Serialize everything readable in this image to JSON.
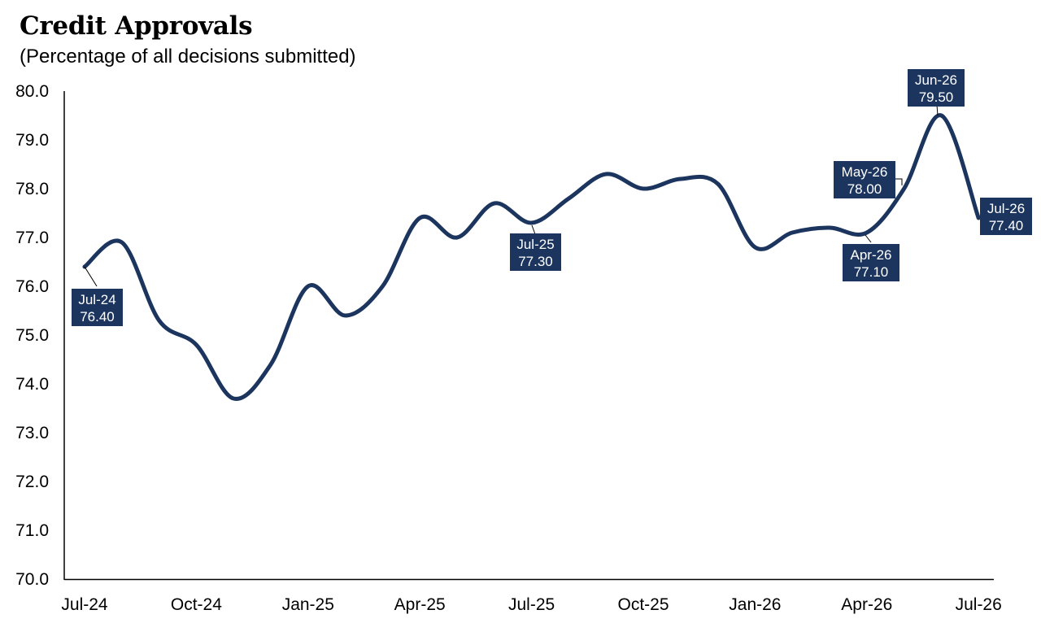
{
  "chart_data": {
    "type": "line",
    "title": "Credit Approvals",
    "subtitle": "(Percentage of all decisions submitted)",
    "xlabel": "",
    "ylabel": "",
    "ylim": [
      70.0,
      80.0
    ],
    "yticks": [
      "70.0",
      "71.0",
      "72.0",
      "73.0",
      "74.0",
      "75.0",
      "76.0",
      "77.0",
      "78.0",
      "79.0",
      "80.0"
    ],
    "xticks": [
      "Jul-24",
      "Oct-24",
      "Jan-25",
      "Apr-25",
      "Jul-25",
      "Oct-25",
      "Jan-26",
      "Apr-26",
      "Jul-26"
    ],
    "grid": false,
    "legend": "none",
    "line_color": "#1c355e",
    "series": [
      {
        "x": [
          "Jul-24",
          "Aug-24",
          "Sep-24",
          "Oct-24",
          "Nov-24",
          "Dec-24",
          "Jan-25",
          "Feb-25",
          "Mar-25",
          "Apr-25",
          "May-25",
          "Jun-25",
          "Jul-25",
          "Aug-25",
          "Sep-25",
          "Oct-25",
          "Nov-25",
          "Dec-25",
          "Jan-26",
          "Feb-26",
          "Mar-26",
          "Apr-26",
          "May-26",
          "Jun-26",
          "Jul-26"
        ],
        "values": [
          76.4,
          76.9,
          75.3,
          74.8,
          73.7,
          74.4,
          76.0,
          75.4,
          76.0,
          77.4,
          77.0,
          77.7,
          77.3,
          77.8,
          78.3,
          78.0,
          78.2,
          78.1,
          76.8,
          77.1,
          77.2,
          77.1,
          78.0,
          79.5,
          77.4
        ]
      }
    ],
    "annotations": [
      {
        "line1": "Jul-24",
        "line2": "76.40"
      },
      {
        "line1": "Jul-25",
        "line2": "77.30"
      },
      {
        "line1": "Apr-26",
        "line2": "77.10"
      },
      {
        "line1": "May-26",
        "line2": "78.00"
      },
      {
        "line1": "Jun-26",
        "line2": "79.50"
      },
      {
        "line1": "Jul-26",
        "line2": "77.40"
      }
    ]
  }
}
